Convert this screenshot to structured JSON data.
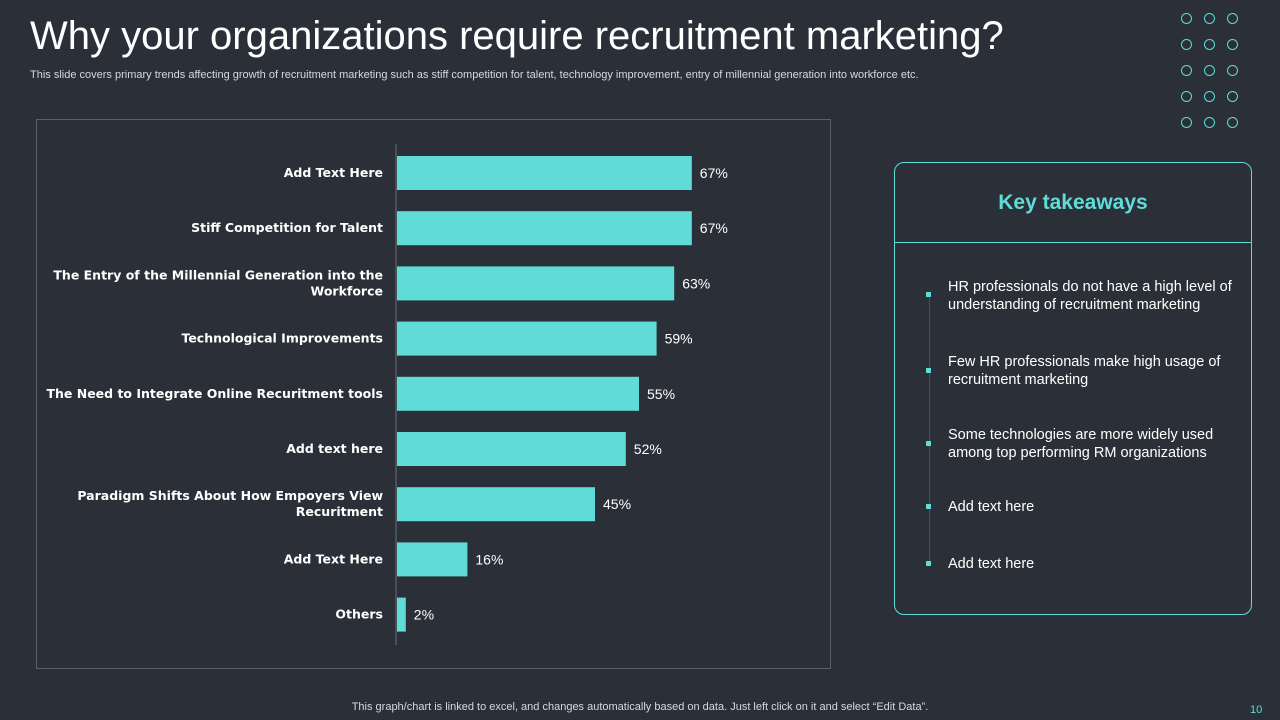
{
  "slide": {
    "title": "Why your organizations require recruitment marketing?",
    "subtitle": "This slide covers primary trends affecting growth of recruitment marketing such as stiff competition for talent, technology improvement, entry of millennial generation into workforce etc.",
    "footer": "This graph/chart is linked to excel,  and changes automatically based on data. Just left click on it and select “Edit Data”.",
    "page_number": "10"
  },
  "colors": {
    "background": "#2b3038",
    "accent": "#5fdcd8",
    "bar": "#5fdcd8"
  },
  "chart_data": {
    "type": "bar",
    "orientation": "horizontal",
    "title": "",
    "xlabel": "",
    "ylabel": "",
    "xlim": [
      0,
      100
    ],
    "categories": [
      [
        "Add Text Here"
      ],
      [
        "Stiff Competition for Talent"
      ],
      [
        "The Entry of the Millennial Generation into the",
        "Workforce"
      ],
      [
        "Technological Improvements"
      ],
      [
        "The Need to Integrate Online Recuritment tools"
      ],
      [
        "Add text here"
      ],
      [
        "Paradigm Shifts About How Empoyers View",
        "Recuritment"
      ],
      [
        "Add Text Here"
      ],
      [
        "Others"
      ]
    ],
    "values": [
      67,
      67,
      63,
      59,
      55,
      52,
      45,
      16,
      2
    ],
    "value_labels": [
      "67%",
      "67%",
      "63%",
      "59%",
      "55%",
      "52%",
      "45%",
      "16%",
      "2%"
    ]
  },
  "takeaways": {
    "title": "Key takeaways",
    "items": [
      "HR professionals do not have a high level of understanding of recruitment marketing",
      "Few HR professionals make high usage of recruitment marketing",
      "Some technologies are more widely used among top performing RM organizations",
      "Add text here",
      "Add text here"
    ]
  }
}
